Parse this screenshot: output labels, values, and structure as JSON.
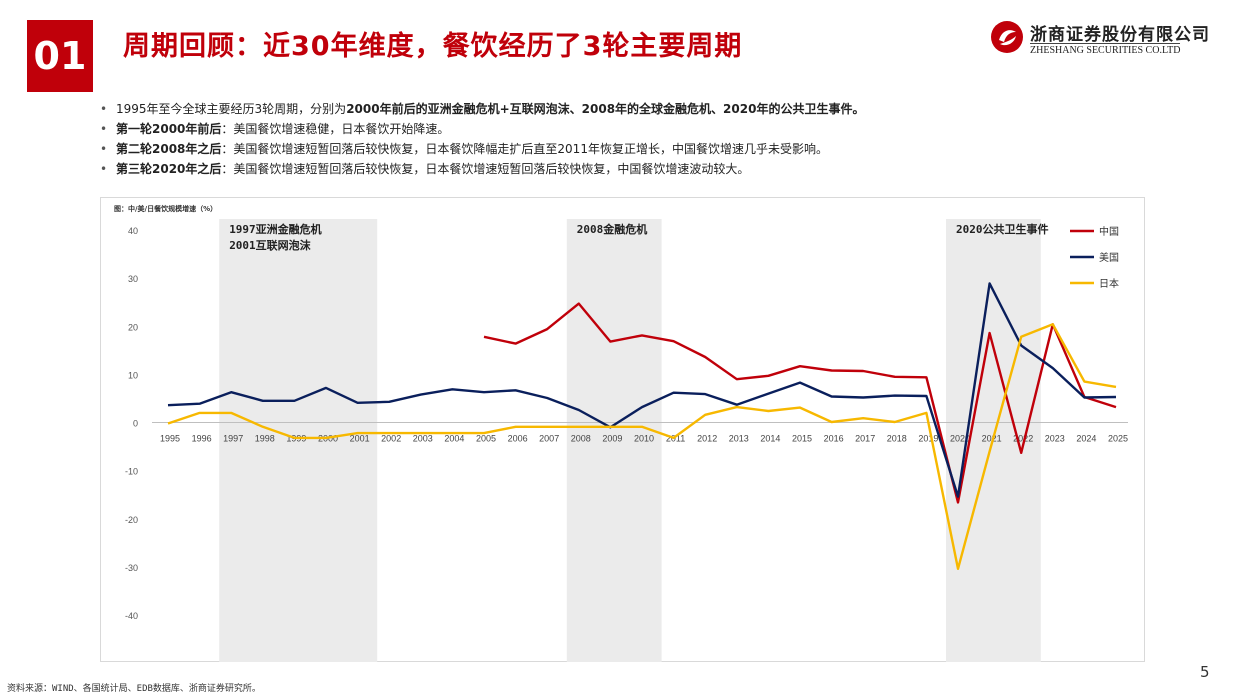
{
  "header": {
    "section_number": "01",
    "title": "周期回顾：近30年维度，餐饮经历了3轮主要周期",
    "logo_cn": "浙商证券股份有限公司",
    "logo_en": "ZHESHANG SECURITIES CO.LTD",
    "brand_color": "#c0000a"
  },
  "bullets": [
    {
      "parts": [
        {
          "text": "1995年至今全球主要经历3轮周期，分别为",
          "bold": false
        },
        {
          "text": "2000年前后的亚洲金融危机+互联网泡沫、2008年的全球金融危机、2020年的公共卫生事件。",
          "bold": true
        }
      ]
    },
    {
      "parts": [
        {
          "text": "第一轮2000年前后",
          "bold": true
        },
        {
          "text": "：美国餐饮增速稳健，日本餐饮开始降速。",
          "bold": false
        }
      ]
    },
    {
      "parts": [
        {
          "text": "第二轮2008年之后",
          "bold": true
        },
        {
          "text": "：美国餐饮增速短暂回落后较快恢复，日本餐饮降幅走扩后直至2011年恢复正增长，中国餐饮增速几乎未受影响。",
          "bold": false
        }
      ]
    },
    {
      "parts": [
        {
          "text": "第三轮2020年之后",
          "bold": true
        },
        {
          "text": "：美国餐饮增速短暂回落后较快恢复，日本餐饮增速短暂回落后较快恢复，中国餐饮增速波动较大。",
          "bold": false
        }
      ]
    }
  ],
  "chart_caption": "图：中/美/日餐饮规模增速（%）",
  "chart_data": {
    "type": "line",
    "x": [
      1995,
      1996,
      1997,
      1998,
      1999,
      2000,
      2001,
      2002,
      2003,
      2004,
      2005,
      2006,
      2007,
      2008,
      2009,
      2010,
      2011,
      2012,
      2013,
      2014,
      2015,
      2016,
      2017,
      2018,
      2019,
      2020,
      2021,
      2022,
      2023,
      2024,
      2025
    ],
    "ylim": [
      -40,
      40
    ],
    "yticks": [
      40,
      30,
      20,
      10,
      0,
      -10,
      -20,
      -30,
      -40
    ],
    "grid": false,
    "legend_position": "top-right",
    "series": [
      {
        "name": "中国",
        "color": "#c0000a",
        "values": [
          null,
          null,
          null,
          null,
          null,
          null,
          null,
          null,
          null,
          null,
          17.8,
          16.4,
          19.4,
          24.7,
          16.8,
          18.1,
          16.9,
          13.6,
          9.0,
          9.7,
          11.7,
          10.8,
          10.7,
          9.5,
          9.4,
          -16.6,
          18.6,
          -6.3,
          20.4,
          5.3,
          3.2
        ]
      },
      {
        "name": "美国",
        "color": "#0a1f5c",
        "values": [
          3.6,
          3.9,
          6.3,
          4.5,
          4.5,
          7.2,
          4.1,
          4.3,
          5.8,
          6.9,
          6.3,
          6.7,
          5.1,
          2.6,
          -1.0,
          3.2,
          6.2,
          5.9,
          3.7,
          6.0,
          8.3,
          5.4,
          5.2,
          5.6,
          5.5,
          -15.4,
          28.9,
          16.0,
          11.3,
          5.2,
          5.3
        ]
      },
      {
        "name": "日本",
        "color": "#f7b800",
        "values": [
          -0.2,
          2.0,
          2.0,
          -0.9,
          -3.2,
          -3.2,
          -2.2,
          -2.2,
          -2.2,
          -2.2,
          -2.2,
          -0.9,
          -0.9,
          -0.9,
          -0.9,
          -0.9,
          -3.2,
          1.6,
          3.2,
          2.4,
          3.1,
          0.1,
          0.9,
          0.1,
          2.0,
          -30.4,
          -6.0,
          17.8,
          20.4,
          8.5,
          7.4
        ]
      }
    ],
    "annotations": [
      {
        "x_start": 1997,
        "x_end": 2002,
        "lines": [
          "1997亚洲金融危机",
          "2001互联网泡沫"
        ],
        "shade": "#ebebeb"
      },
      {
        "x_start": 2008,
        "x_end": 2011,
        "lines": [
          "2008金融危机"
        ],
        "shade": "#ebebeb"
      },
      {
        "x_start": 2020,
        "x_end": 2023,
        "lines": [
          "2020公共卫生事件"
        ],
        "shade": "#ebebeb"
      }
    ]
  },
  "footer": {
    "source": "资料来源：WIND、各国统计局、EDB数据库、浙商证券研究所。",
    "page_number": "5"
  }
}
